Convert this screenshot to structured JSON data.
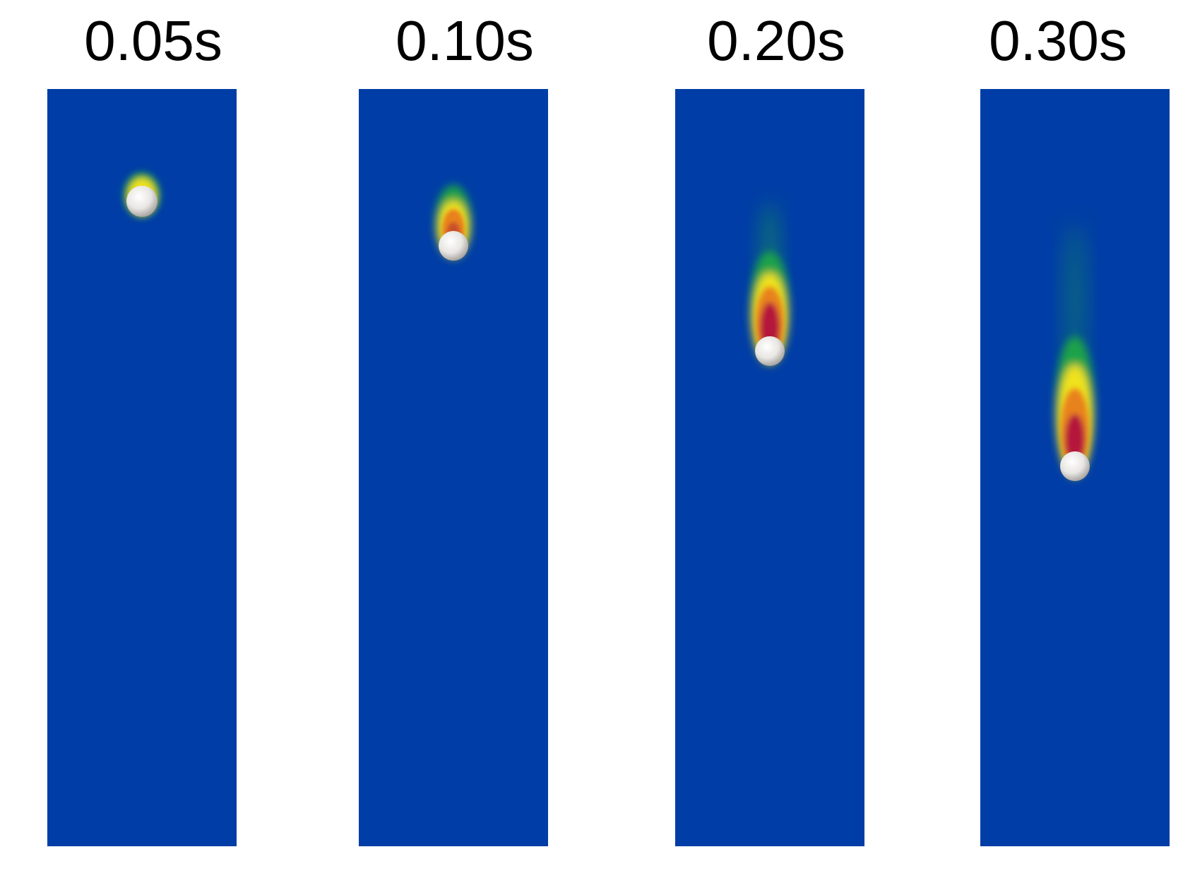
{
  "figure": {
    "background_color": "#003da6",
    "colormap": [
      "#003da6",
      "#1aa34a",
      "#f0e21a",
      "#e8821e",
      "#b5123a"
    ],
    "sphere_color": "#f0eeec",
    "panels": [
      {
        "time_label": "0.05s"
      },
      {
        "time_label": "0.10s"
      },
      {
        "time_label": "0.20s"
      },
      {
        "time_label": "0.30s"
      }
    ]
  }
}
